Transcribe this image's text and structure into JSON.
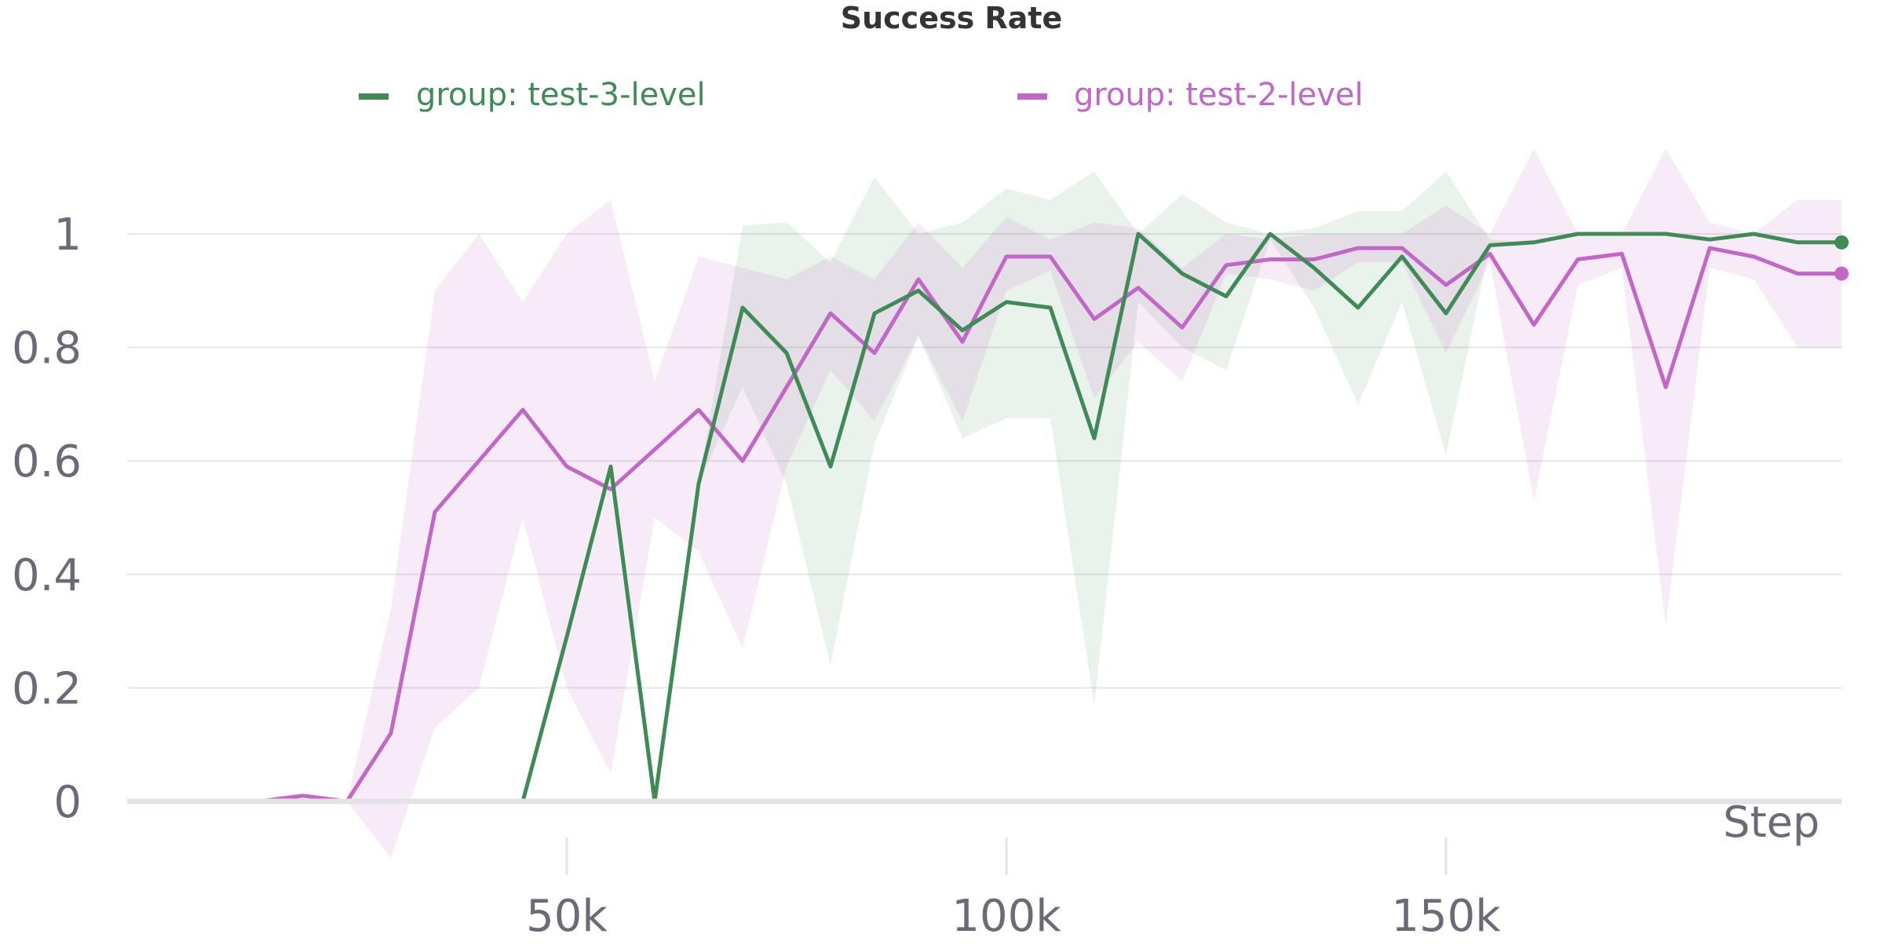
{
  "chart_data": {
    "type": "line",
    "title": "Success Rate",
    "xlabel": "Step",
    "ylabel": "",
    "xlim": [
      0,
      195000
    ],
    "ylim": [
      -0.1,
      1.15
    ],
    "yticks": [
      0,
      0.2,
      0.4,
      0.6,
      0.8,
      1
    ],
    "ytick_labels": [
      "0",
      "0.2",
      "0.4",
      "0.6",
      "0.8",
      "1"
    ],
    "xticks": [
      50000,
      100000,
      150000
    ],
    "xtick_labels": [
      "50k",
      "100k",
      "150k"
    ],
    "grid": true,
    "legend_position": "top",
    "x": [
      0,
      5000,
      10000,
      15000,
      20000,
      25000,
      30000,
      35000,
      40000,
      45000,
      50000,
      55000,
      60000,
      65000,
      70000,
      75000,
      80000,
      85000,
      90000,
      95000,
      100000,
      105000,
      110000,
      115000,
      120000,
      125000,
      130000,
      135000,
      140000,
      145000,
      150000,
      155000,
      160000,
      165000,
      170000,
      175000,
      180000,
      185000,
      190000,
      195000
    ],
    "series": [
      {
        "name": "group: test-3-level",
        "color": "#3e8b55",
        "band_color": "#3e8b55",
        "values": [
          null,
          null,
          null,
          null,
          null,
          null,
          null,
          null,
          null,
          0,
          0.29,
          0.59,
          0,
          0.56,
          0.87,
          0.79,
          0.59,
          0.86,
          0.9,
          0.83,
          0.88,
          0.87,
          0.64,
          1.0,
          0.93,
          0.89,
          1.0,
          0.94,
          0.87,
          0.96,
          0.86,
          0.98,
          0.985,
          1.0,
          1.0,
          1.0,
          0.99,
          1.0,
          0.985,
          0.985
        ],
        "lower": [
          null,
          null,
          null,
          null,
          null,
          null,
          null,
          null,
          null,
          0,
          0.29,
          0.59,
          0,
          0.56,
          0.73,
          0.56,
          0.24,
          0.63,
          0.82,
          0.64,
          0.675,
          0.675,
          0.17,
          0.88,
          0.8,
          0.76,
          0.99,
          0.87,
          0.7,
          0.88,
          0.61,
          0.98,
          0.985,
          1.0,
          1.0,
          1.0,
          0.99,
          1.0,
          0.985,
          0.985
        ],
        "upper": [
          null,
          null,
          null,
          null,
          null,
          null,
          null,
          null,
          null,
          0,
          0.29,
          0.59,
          0,
          0.56,
          1.015,
          1.02,
          0.95,
          1.1,
          1.0,
          1.02,
          1.08,
          1.06,
          1.11,
          1.0,
          1.07,
          1.02,
          1.0,
          1.01,
          1.04,
          1.04,
          1.11,
          0.99,
          0.985,
          1.0,
          1.0,
          1.0,
          0.99,
          1.0,
          0.985,
          0.985
        ]
      },
      {
        "name": "group: test-2-level",
        "color": "#c266c8",
        "band_color": "#c266c8",
        "values": [
          null,
          null,
          0,
          0,
          0.01,
          0,
          0.12,
          0.51,
          0.6,
          0.69,
          0.59,
          0.55,
          0.62,
          0.69,
          0.6,
          0.73,
          0.86,
          0.79,
          0.92,
          0.81,
          0.96,
          0.96,
          0.85,
          0.905,
          0.835,
          0.945,
          0.955,
          0.955,
          0.975,
          0.975,
          0.91,
          0.965,
          0.84,
          0.955,
          0.965,
          0.73,
          0.975,
          0.96,
          0.93,
          0.93
        ],
        "lower": [
          null,
          null,
          0,
          0,
          0.01,
          0,
          -0.1,
          0.13,
          0.2,
          0.5,
          0.2,
          0.05,
          0.5,
          0.44,
          0.27,
          0.59,
          0.76,
          0.67,
          0.82,
          0.67,
          0.9,
          0.935,
          0.71,
          0.81,
          0.74,
          0.93,
          0.92,
          0.9,
          0.95,
          0.95,
          0.79,
          0.95,
          0.53,
          0.91,
          0.94,
          0.31,
          0.94,
          0.92,
          0.8,
          0.8
        ],
        "upper": [
          null,
          null,
          0,
          0,
          0.01,
          0,
          0.34,
          0.9,
          1.0,
          0.88,
          1.0,
          1.06,
          0.74,
          0.96,
          0.94,
          0.92,
          0.96,
          0.92,
          1.02,
          0.94,
          1.03,
          0.99,
          1.02,
          1.01,
          0.94,
          1.0,
          0.99,
          1.0,
          1.0,
          1.0,
          1.05,
          1.0,
          1.15,
          1.0,
          1.0,
          1.15,
          1.02,
          1.0,
          1.06,
          1.06
        ]
      }
    ]
  }
}
